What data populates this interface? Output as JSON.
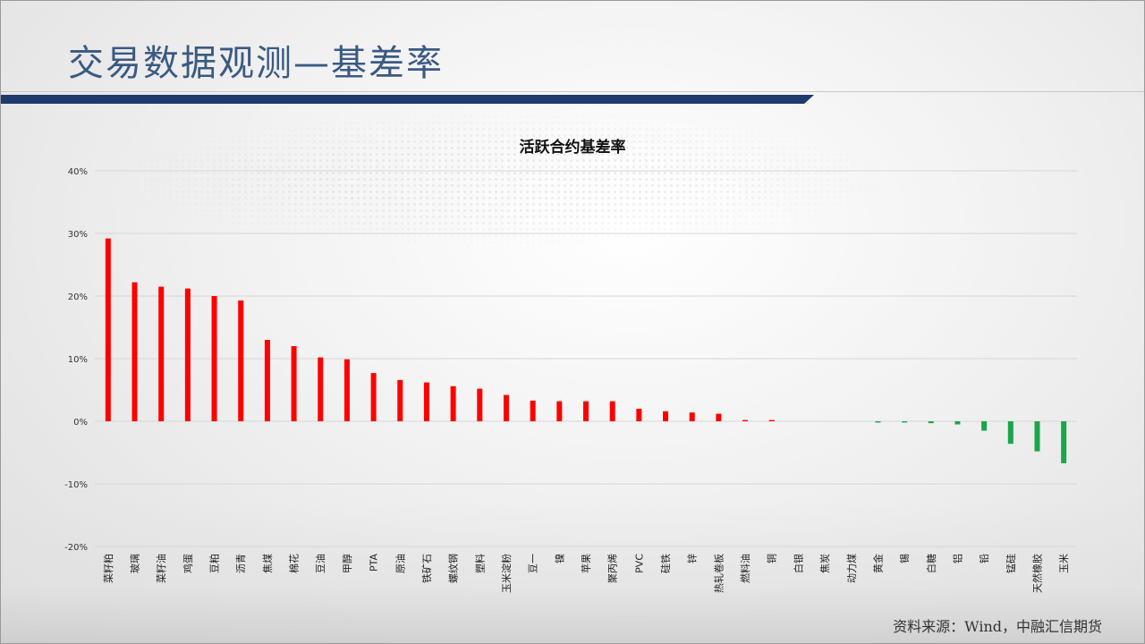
{
  "slide": {
    "title": "交易数据观测—基差率",
    "source": "资料来源：Wind，中融汇信期货"
  },
  "colors": {
    "positive": "#ff0000",
    "negative": "#1aa64a",
    "title_accent": "#3a5a82",
    "bar_accent": "#1e3a6e"
  },
  "chart_data": {
    "type": "bar",
    "title": "活跃合约基差率",
    "xlabel": "",
    "ylabel": "",
    "ylim": [
      -0.2,
      0.4
    ],
    "yticks": [
      "40%",
      "30%",
      "20%",
      "10%",
      "0%",
      "-10%",
      "-20%"
    ],
    "grid": true,
    "categories": [
      "菜籽粕",
      "玻璃",
      "菜籽油",
      "鸡蛋",
      "豆粕",
      "沥青",
      "焦煤",
      "棉花",
      "豆油",
      "甲醇",
      "PTA",
      "原油",
      "铁矿石",
      "螺纹钢",
      "塑料",
      "玉米淀粉",
      "豆一",
      "镍",
      "苹果",
      "聚丙烯",
      "PVC",
      "硅铁",
      "锌",
      "热轧卷板",
      "燃料油",
      "铜",
      "白银",
      "焦炭",
      "动力煤",
      "黄金",
      "锡",
      "白糖",
      "铝",
      "铅",
      "锰硅",
      "天然橡胶",
      "玉米"
    ],
    "values": [
      0.292,
      0.222,
      0.215,
      0.212,
      0.2,
      0.193,
      0.13,
      0.12,
      0.102,
      0.099,
      0.077,
      0.066,
      0.062,
      0.056,
      0.052,
      0.042,
      0.033,
      0.032,
      0.032,
      0.032,
      0.02,
      0.016,
      0.014,
      0.012,
      0.002,
      0.002,
      0.0,
      0.0,
      0.0,
      -0.002,
      -0.002,
      -0.003,
      -0.005,
      -0.015,
      -0.036,
      -0.048,
      -0.067
    ]
  }
}
